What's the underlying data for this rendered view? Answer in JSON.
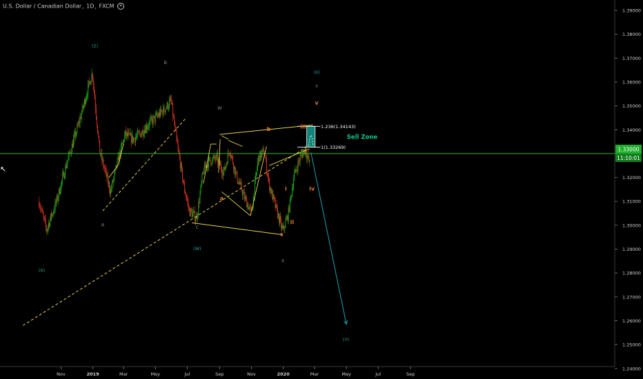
{
  "header": {
    "symbol": "U.S. Dollar / Canadian Dollar",
    "interval": "1D",
    "exchange": "FXCM",
    "icon": "close-icon"
  },
  "colors": {
    "background": "#000000",
    "up": "#11b71b",
    "down": "#e53626",
    "wave_label": "#26a69a",
    "letter_label": "#8a8a8a",
    "orange_label": "#e07b2b",
    "trend": "#e8d44d",
    "price_line": "#23c223",
    "sell_zone_fill": "#0f8577",
    "projection": "#1aa5b0",
    "axis_text": "#d0d0d0"
  },
  "price_tag": {
    "price": "1.33000",
    "countdown": "11:10:01"
  },
  "chart_data": {
    "type": "candlestick",
    "title": "U.S. Dollar / Canadian Dollar, 1D, FXCM",
    "xlabel": "",
    "ylabel": "",
    "x_ticks": [
      "Nov",
      "2019",
      "Mar",
      "May",
      "Jul",
      "Sep",
      "Nov",
      "2020",
      "Mar",
      "May",
      "Jul",
      "Sep"
    ],
    "y_ticks": [
      "1.39000",
      "1.38000",
      "1.37000",
      "1.36000",
      "1.35000",
      "1.34000",
      "1.33000",
      "1.32000",
      "1.31000",
      "1.30000",
      "1.29000",
      "1.28000",
      "1.27000",
      "1.26000",
      "1.25000",
      "1.24000"
    ],
    "ylim": [
      1.2345,
      1.3945
    ],
    "grid": false,
    "current_price": 1.33,
    "series": [
      {
        "type": "ohlc-path",
        "x": [
          "2018-09-20",
          "2018-10-04",
          "2018-10-22",
          "2018-11-12",
          "2018-12-03",
          "2018-12-31",
          "2019-01-14",
          "2019-02-04",
          "2019-02-18",
          "2019-03-04",
          "2019-03-18",
          "2019-04-01",
          "2019-04-16",
          "2019-05-01",
          "2019-05-16",
          "2019-05-31",
          "2019-06-10",
          "2019-06-24",
          "2019-07-05",
          "2019-07-19",
          "2019-08-01",
          "2019-08-12",
          "2019-08-26",
          "2019-09-09",
          "2019-09-20",
          "2019-10-04",
          "2019-10-18",
          "2019-11-01",
          "2019-11-14",
          "2019-11-25",
          "2019-12-05",
          "2019-12-18",
          "2019-12-31",
          "2020-01-10",
          "2020-01-21",
          "2020-01-31",
          "2020-02-12",
          "2020-02-21"
        ],
        "values": [
          1.31,
          1.298,
          1.309,
          1.326,
          1.341,
          1.364,
          1.331,
          1.314,
          1.327,
          1.338,
          1.336,
          1.338,
          1.342,
          1.345,
          1.348,
          1.352,
          1.336,
          1.317,
          1.306,
          1.303,
          1.323,
          1.327,
          1.328,
          1.322,
          1.332,
          1.32,
          1.312,
          1.305,
          1.328,
          1.331,
          1.317,
          1.307,
          1.2975,
          1.304,
          1.32,
          1.327,
          1.332,
          1.3255
        ]
      }
    ],
    "trendlines": [
      {
        "style": "dashed",
        "from": [
          "2018-08-20",
          1.258
        ],
        "to": [
          "2020-02-24",
          1.334
        ]
      },
      {
        "style": "dashed",
        "from": [
          "2019-01-20",
          1.306
        ],
        "to": [
          "2019-06-29",
          1.345
        ]
      },
      {
        "style": "solid",
        "from": [
          "2019-09-01",
          1.338
        ],
        "to": [
          "2020-02-27",
          1.342
        ]
      },
      {
        "style": "solid",
        "from": [
          "2019-07-10",
          1.301
        ],
        "to": [
          "2019-12-31",
          1.296
        ]
      }
    ],
    "fib_levels": [
      {
        "label": "1.236(1.34143)",
        "value": 1.34143
      },
      {
        "label": "1(1.33269)",
        "value": 1.33269
      }
    ],
    "sell_zone": {
      "label": "Sell Zone",
      "from": 1.33269,
      "to": 1.34143
    },
    "projection": {
      "from": [
        "2020-02-23",
        1.3305
      ],
      "to": [
        "2020-05-01",
        1.2585
      ]
    },
    "wave_labels": [
      {
        "text": "(X)",
        "x": "2018-09-25",
        "y": 1.2805,
        "color": "wave"
      },
      {
        "text": "(2)",
        "x": "2019-01-05",
        "y": 1.3745,
        "color": "wave"
      },
      {
        "text": "(W)",
        "x": "2019-07-20",
        "y": 1.2895,
        "color": "wave"
      },
      {
        "text": "(X)",
        "x": "2020-03-05",
        "y": 1.3635,
        "color": "wave"
      },
      {
        "text": "(Y)",
        "x": "2020-04-30",
        "y": 1.2515,
        "color": "wave"
      },
      {
        "text": "A",
        "x": "2019-01-20",
        "y": 1.2995,
        "color": "gray"
      },
      {
        "text": "B",
        "x": "2019-05-20",
        "y": 1.3675,
        "color": "gray"
      },
      {
        "text": "C",
        "x": "2019-07-20",
        "y": 1.2985,
        "color": "gray"
      },
      {
        "text": "W",
        "x": "2019-09-01",
        "y": 1.3485,
        "color": "gray"
      },
      {
        "text": "X",
        "x": "2019-12-31",
        "y": 1.2845,
        "color": "gray"
      },
      {
        "text": "Y",
        "x": "2020-03-05",
        "y": 1.3575,
        "color": "gray"
      },
      {
        "text": "a",
        "x": "2019-09-05",
        "y": 1.3105,
        "color": "orange"
      },
      {
        "text": "b",
        "x": "2019-12-04",
        "y": 1.3395,
        "color": "orange"
      },
      {
        "text": "c",
        "x": "2019-12-29",
        "y": 1.2955,
        "color": "orange"
      },
      {
        "text": "i",
        "x": "2020-01-06",
        "y": 1.3145,
        "color": "orange"
      },
      {
        "text": "ii",
        "x": "2020-01-18",
        "y": 1.3005,
        "color": "orange"
      },
      {
        "text": "iii",
        "x": "2020-02-08",
        "y": 1.3405,
        "color": "orange"
      },
      {
        "text": "iv",
        "x": "2020-02-25",
        "y": 1.3145,
        "color": "orange"
      },
      {
        "text": "v",
        "x": "2020-03-05",
        "y": 1.3505,
        "color": "orange"
      }
    ]
  }
}
